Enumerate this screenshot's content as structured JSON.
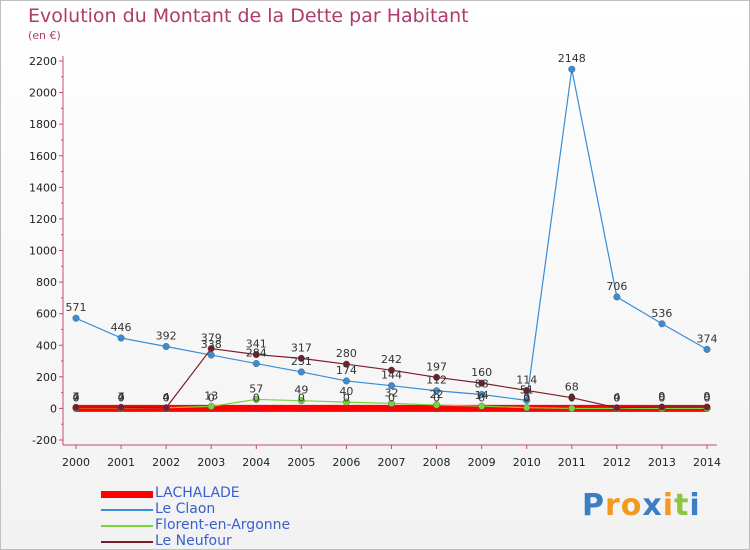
{
  "title": "Evolution du Montant de la Dette par Habitant",
  "subtitle": "(en €)",
  "logo": {
    "letters": [
      {
        "ch": "P",
        "color": "#3a7fc4"
      },
      {
        "ch": "r",
        "color": "#f39a1e"
      },
      {
        "ch": "o",
        "color": "#f39a1e"
      },
      {
        "ch": "x",
        "color": "#3a7fc4"
      },
      {
        "ch": "i",
        "color": "#f39a1e"
      },
      {
        "ch": "t",
        "color": "#8cc63f"
      },
      {
        "ch": "i",
        "color": "#3a7fc4"
      }
    ]
  },
  "chart_data": {
    "type": "line",
    "x": [
      "2000",
      "2001",
      "2002",
      "2003",
      "2004",
      "2005",
      "2006",
      "2007",
      "2008",
      "2009",
      "2010",
      "2011",
      "2012",
      "2013",
      "2014"
    ],
    "ylim": [
      -200,
      2200
    ],
    "yticks": [
      -200,
      0,
      200,
      400,
      600,
      800,
      1000,
      1200,
      1400,
      1600,
      1800,
      2000,
      2200
    ],
    "grid": false,
    "legend_position": "bottom-left",
    "series": [
      {
        "name": "LACHALADE",
        "color": "#ff0000",
        "values": [
          0,
          0,
          0,
          0,
          0,
          0,
          0,
          0,
          0,
          0,
          0,
          0,
          0,
          0,
          0
        ],
        "labels": [
          "0",
          "0",
          "0",
          "0",
          "0",
          "0",
          "0",
          "0",
          "0",
          "0",
          "0",
          "0",
          "0",
          "0",
          "0"
        ]
      },
      {
        "name": "Le Claon",
        "color": "#3a8cd6",
        "values": [
          571,
          446,
          392,
          338,
          284,
          231,
          174,
          144,
          112,
          88,
          51,
          2148,
          706,
          536,
          374
        ],
        "labels": [
          "571",
          "446",
          "392",
          "338",
          "284",
          "231",
          "174",
          "144",
          "112",
          "88",
          "51",
          "2148",
          "706",
          "536",
          "374"
        ]
      },
      {
        "name": "Florent-en-Argonne",
        "color": "#77d43a",
        "values": [
          4,
          4,
          4,
          13,
          57,
          49,
          40,
          32,
          22,
          14,
          5,
          0,
          0,
          0,
          0
        ],
        "labels": [
          "4",
          "4",
          "4",
          "13",
          "57",
          "49",
          "40",
          "32",
          "22",
          "14",
          "5",
          "0",
          "0",
          "0",
          "0"
        ]
      },
      {
        "name": "Le Neufour",
        "color": "#7b1c2b",
        "values": [
          7,
          7,
          4,
          379,
          341,
          317,
          280,
          242,
          197,
          160,
          114,
          68,
          4,
          9,
          9
        ],
        "labels": [
          "7",
          "7",
          "4",
          "379",
          "341",
          "317",
          "280",
          "242",
          "197",
          "160",
          "114",
          "68",
          "4",
          "9",
          "9"
        ]
      }
    ]
  }
}
